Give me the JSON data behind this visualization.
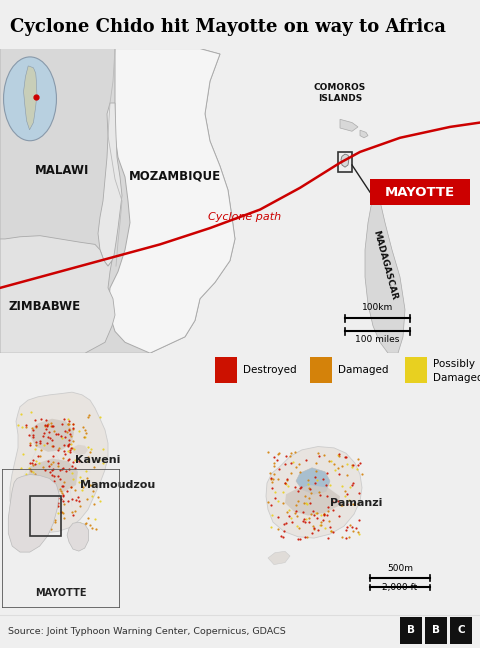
{
  "title": "Cyclone Chido hit Mayotte on way to Africa",
  "source_text": "Source: Joint Typhoon Warning Center, Copernicus, GDACS",
  "bg_color": "#efefef",
  "sea_color": "#a8bfcf",
  "land_color": "#e2e2e2",
  "land_edge": "#bbbbbb",
  "mozambique_color": "#f0f0f0",
  "mozambique_edge": "#999999",
  "cyclone_color": "#cc0000",
  "mayotte_box_color": "#cc0000",
  "mayotte_text_color": "#ffffff",
  "legend_colors": [
    "#cc1100",
    "#d4820a",
    "#e8d020"
  ],
  "legend_labels": [
    "Destroyed",
    "Damaged",
    "Possibly\nDamaged"
  ],
  "destroyed_color": "#cc1100",
  "damaged_color": "#d4820a",
  "possibly_color": "#e8d020",
  "island_color": "#e8e4e0",
  "urban_color": "#c8c0b8",
  "title_fontsize": 13,
  "label_fontsize": 8.5,
  "small_fontsize": 7
}
